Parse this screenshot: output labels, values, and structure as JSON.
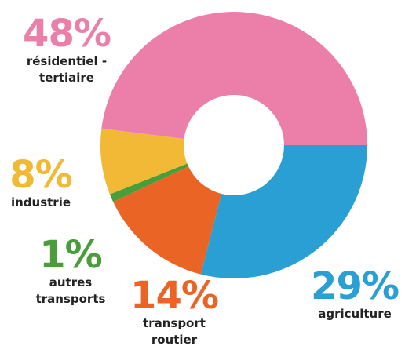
{
  "chart_data": {
    "type": "donut",
    "categories": [
      "agriculture",
      "transport routier",
      "autres transports",
      "industrie",
      "résidentiel - tertiaire"
    ],
    "values": [
      29,
      14,
      1,
      8,
      48
    ],
    "value_labels": [
      "29%",
      "14%",
      "1%",
      "8%",
      "48%"
    ],
    "colors": [
      "#2a9fd3",
      "#ea6425",
      "#4a9d3b",
      "#f2b937",
      "#ec7fa9"
    ]
  }
}
